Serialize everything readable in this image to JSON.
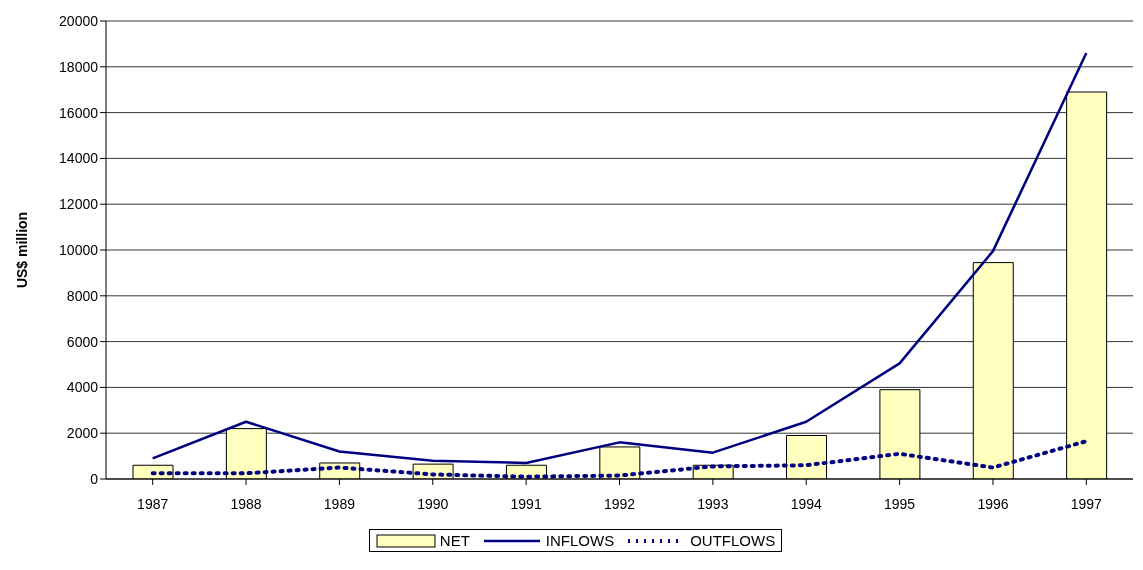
{
  "chart_data": {
    "type": "bar",
    "ylabel": "US$ million",
    "categories": [
      "1987",
      "1988",
      "1989",
      "1990",
      "1991",
      "1992",
      "1993",
      "1994",
      "1995",
      "1996",
      "1997"
    ],
    "series": [
      {
        "name": "NET",
        "color": "#ffffc0",
        "values": [
          600,
          2200,
          700,
          650,
          600,
          1400,
          600,
          1900,
          3900,
          9450,
          16900
        ]
      },
      {
        "name": "INFLOWS",
        "type": "line",
        "color": "#000080",
        "line_style": "solid",
        "values": [
          900,
          2500,
          1200,
          800,
          700,
          1600,
          1150,
          2500,
          5050,
          9950,
          18600
        ]
      },
      {
        "name": "OUTFLOWS",
        "type": "line",
        "color": "#000080",
        "line_style": "dotted",
        "values": [
          250,
          250,
          500,
          200,
          100,
          150,
          550,
          600,
          1100,
          500,
          1650
        ]
      }
    ],
    "ylim": [
      0,
      20000
    ],
    "yticks": [
      0,
      2000,
      4000,
      6000,
      8000,
      10000,
      12000,
      14000,
      16000,
      18000,
      20000
    ],
    "grid": "y",
    "legend": "bottom",
    "marker": "none"
  }
}
